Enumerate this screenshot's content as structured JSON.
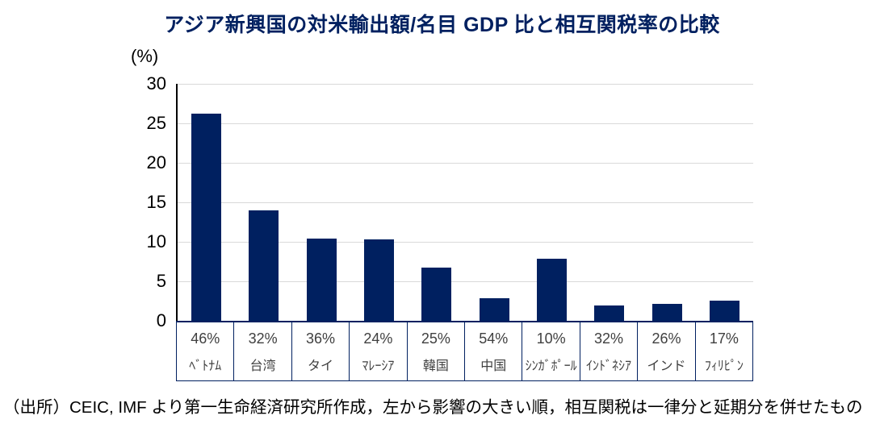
{
  "chart_data": {
    "type": "bar",
    "title": "アジア新興国の対米輸出額/名目 GDP 比と相互関税率の比較",
    "unit_label": "(%)",
    "xlabel": "",
    "ylabel": "",
    "ylim": [
      0,
      30
    ],
    "yticks": [
      0,
      5,
      10,
      15,
      20,
      25,
      30
    ],
    "grid": "horizontal",
    "legend_position": "none",
    "categories": [
      "ﾍﾞﾄﾅﾑ",
      "台湾",
      "タイ",
      "ﾏﾚｰｼｱ",
      "韓国",
      "中国",
      "ｼﾝｶﾞﾎﾟｰﾙ",
      "ｲﾝﾄﾞﾈｼｱ",
      "インド",
      "ﾌｨﾘﾋﾟﾝ"
    ],
    "tariff_labels": [
      "46%",
      "32%",
      "36%",
      "24%",
      "25%",
      "54%",
      "10%",
      "32%",
      "26%",
      "17%"
    ],
    "series": [
      {
        "name": "対米輸出額/名目GDP比",
        "values": [
          26.2,
          14.0,
          10.4,
          10.3,
          6.7,
          2.9,
          7.9,
          1.9,
          2.1,
          2.6
        ]
      }
    ],
    "colors": {
      "bar": "#002060",
      "title": "#002060",
      "gridline": "#d9d9d9",
      "y_axis": "#000000",
      "table_border": "#002060",
      "category_text": "#404040"
    }
  },
  "footer": {
    "source_note": "（出所）CEIC, IMF より第一生命経済研究所作成，左から影響の大きい順，相互関税は一律分と延期分を併せたもの"
  }
}
